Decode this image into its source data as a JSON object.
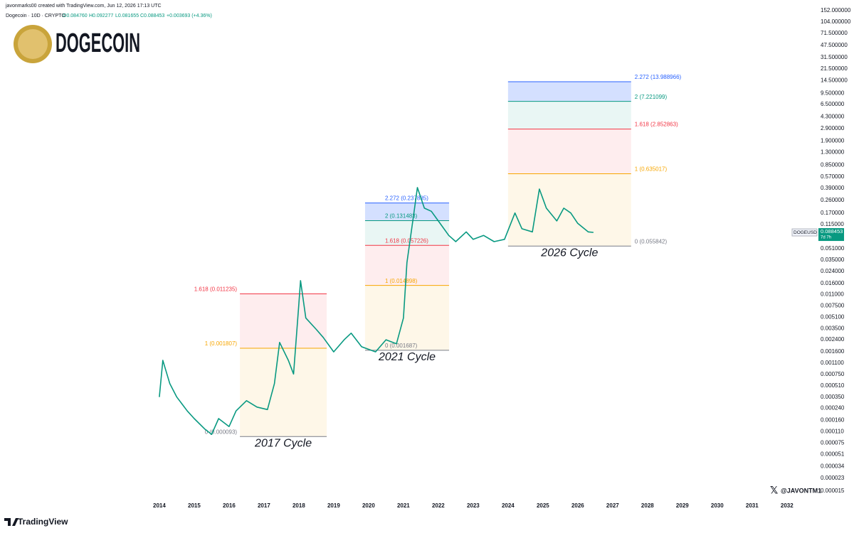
{
  "header": {
    "created": "javonmarks00 created with TradingView.com, Jun 12, 2026 17:13 UTC",
    "symbol": "Dogecoin · 10D · CRYPTO",
    "ohlc": [
      "O0.084760",
      "H0.092277",
      "L0.081655",
      "C0.088453"
    ],
    "change": "+0.003693 (+4.36%)"
  },
  "logo": "DOGECOIN",
  "watermark": "@JAVONTM1",
  "brand": "TradingView",
  "chart_data": {
    "type": "line",
    "log_scale": true,
    "grid": false,
    "xlim": [
      2009.43,
      2032.8
    ],
    "ylim": [
      1.2e-05,
      180
    ],
    "xticks": [
      2014,
      2015,
      2016,
      2017,
      2018,
      2019,
      2020,
      2021,
      2022,
      2023,
      2024,
      2025,
      2026,
      2027,
      2028,
      2029,
      2030,
      2031,
      2032
    ],
    "yticks": [
      {
        "value": 152,
        "label": "152.000000"
      },
      {
        "value": 104,
        "label": "104.000000"
      },
      {
        "value": 71.5,
        "label": "71.500000"
      },
      {
        "value": 47.5,
        "label": "47.500000"
      },
      {
        "value": 31.5,
        "label": "31.500000"
      },
      {
        "value": 21.5,
        "label": "21.500000"
      },
      {
        "value": 14.5,
        "label": "14.500000"
      },
      {
        "value": 9.5,
        "label": "9.500000"
      },
      {
        "value": 6.5,
        "label": "6.500000"
      },
      {
        "value": 4.3,
        "label": "4.300000"
      },
      {
        "value": 2.9,
        "label": "2.900000"
      },
      {
        "value": 1.9,
        "label": "1.900000"
      },
      {
        "value": 1.3,
        "label": "1.300000"
      },
      {
        "value": 0.85,
        "label": "0.850000"
      },
      {
        "value": 0.57,
        "label": "0.570000"
      },
      {
        "value": 0.39,
        "label": "0.390000"
      },
      {
        "value": 0.26,
        "label": "0.260000"
      },
      {
        "value": 0.17,
        "label": "0.170000"
      },
      {
        "value": 0.115,
        "label": "0.115000"
      },
      {
        "value": 0.051,
        "label": "0.051000"
      },
      {
        "value": 0.035,
        "label": "0.035000"
      },
      {
        "value": 0.024,
        "label": "0.024000"
      },
      {
        "value": 0.016,
        "label": "0.016000"
      },
      {
        "value": 0.011,
        "label": "0.011000"
      },
      {
        "value": 0.0075,
        "label": "0.007500"
      },
      {
        "value": 0.0051,
        "label": "0.005100"
      },
      {
        "value": 0.0035,
        "label": "0.003500"
      },
      {
        "value": 0.0024,
        "label": "0.002400"
      },
      {
        "value": 0.0016,
        "label": "0.001600"
      },
      {
        "value": 0.0011,
        "label": "0.001100"
      },
      {
        "value": 0.00075,
        "label": "0.000750"
      },
      {
        "value": 0.00051,
        "label": "0.000510"
      },
      {
        "value": 0.00035,
        "label": "0.000350"
      },
      {
        "value": 0.00024,
        "label": "0.000240"
      },
      {
        "value": 0.00016,
        "label": "0.000160"
      },
      {
        "value": 0.00011,
        "label": "0.000110"
      },
      {
        "value": 7.5e-05,
        "label": "0.000075"
      },
      {
        "value": 5.1e-05,
        "label": "0.000051"
      },
      {
        "value": 3.4e-05,
        "label": "0.000034"
      },
      {
        "value": 2.3e-05,
        "label": "0.000023"
      },
      {
        "value": 1.5e-05,
        "label": "0.000015"
      }
    ],
    "x": [
      2014.0,
      2014.1,
      2014.3,
      2014.5,
      2014.8,
      2015.0,
      2015.3,
      2015.5,
      2015.7,
      2016.0,
      2016.2,
      2016.5,
      2016.8,
      2017.1,
      2017.3,
      2017.45,
      2017.7,
      2017.85,
      2018.0,
      2018.05,
      2018.2,
      2018.5,
      2018.7,
      2019.0,
      2019.3,
      2019.5,
      2019.8,
      2020.2,
      2020.5,
      2020.8,
      2021.0,
      2021.1,
      2021.3,
      2021.4,
      2021.6,
      2021.8,
      2022.0,
      2022.3,
      2022.5,
      2022.8,
      2023.0,
      2023.3,
      2023.6,
      2023.9,
      2024.2,
      2024.4,
      2024.7,
      2024.9,
      2025.1,
      2025.4,
      2025.6,
      2025.8,
      2026.0,
      2026.3,
      2026.45
    ],
    "series": [
      {
        "name": "DOGEUSD",
        "color": "#089981",
        "values": [
          0.00035,
          0.0012,
          0.00055,
          0.00035,
          0.00022,
          0.00017,
          0.00012,
          0.0001,
          0.00017,
          0.00013,
          0.00022,
          0.00031,
          0.00025,
          0.00023,
          0.00055,
          0.0022,
          0.0012,
          0.00076,
          0.0079,
          0.0175,
          0.005,
          0.0034,
          0.0026,
          0.0016,
          0.0024,
          0.003,
          0.0019,
          0.0016,
          0.0024,
          0.0021,
          0.005,
          0.032,
          0.17,
          0.4,
          0.2,
          0.18,
          0.13,
          0.08,
          0.065,
          0.09,
          0.07,
          0.08,
          0.065,
          0.07,
          0.17,
          0.1,
          0.09,
          0.38,
          0.2,
          0.13,
          0.2,
          0.17,
          0.12,
          0.09,
          0.088453
        ]
      }
    ],
    "countdown": "7d 7h",
    "fib_zones": [
      {
        "label": "2017 Cycle",
        "x": [
          2016.31,
          2018.8
        ],
        "levels": [
          {
            "value": 9.3e-05,
            "label": "0 (0.000093)",
            "color": "#787b86"
          },
          {
            "value": 0.001807,
            "label": "1 (0.001807)",
            "color": "#f7a600"
          },
          {
            "value": 0.011235,
            "label": "1.618 (0.011235)",
            "color": "#f23645"
          }
        ]
      },
      {
        "label": "2021 Cycle",
        "x": [
          2019.9,
          2022.31
        ],
        "levels": [
          {
            "value": 0.001687,
            "label": "0 (0.001687)",
            "color": "#787b86"
          },
          {
            "value": 0.014898,
            "label": "1 (0.014898)",
            "color": "#f7a600"
          },
          {
            "value": 0.057226,
            "label": "1.618 (0.057226)",
            "color": "#f23645"
          },
          {
            "value": 0.131483,
            "label": "2 (0.131483)",
            "color": "#089981"
          },
          {
            "value": 0.237885,
            "label": "2.272 (0.237885)",
            "color": "#2962ff"
          }
        ]
      },
      {
        "label": "2026 Cycle",
        "x": [
          2024.0,
          2027.53
        ],
        "levels": [
          {
            "value": 0.055842,
            "label": "0 (0.055842)",
            "color": "#787b86"
          },
          {
            "value": 0.635017,
            "label": "1 (0.635017)",
            "color": "#f7a600"
          },
          {
            "value": 2.852863,
            "label": "1.618 (2.852863)",
            "color": "#f23645"
          },
          {
            "value": 7.221099,
            "label": "2 (7.221099)",
            "color": "#089981"
          },
          {
            "value": 13.988966,
            "label": "2.272 (13.988966)",
            "color": "#2962ff"
          }
        ]
      }
    ]
  }
}
